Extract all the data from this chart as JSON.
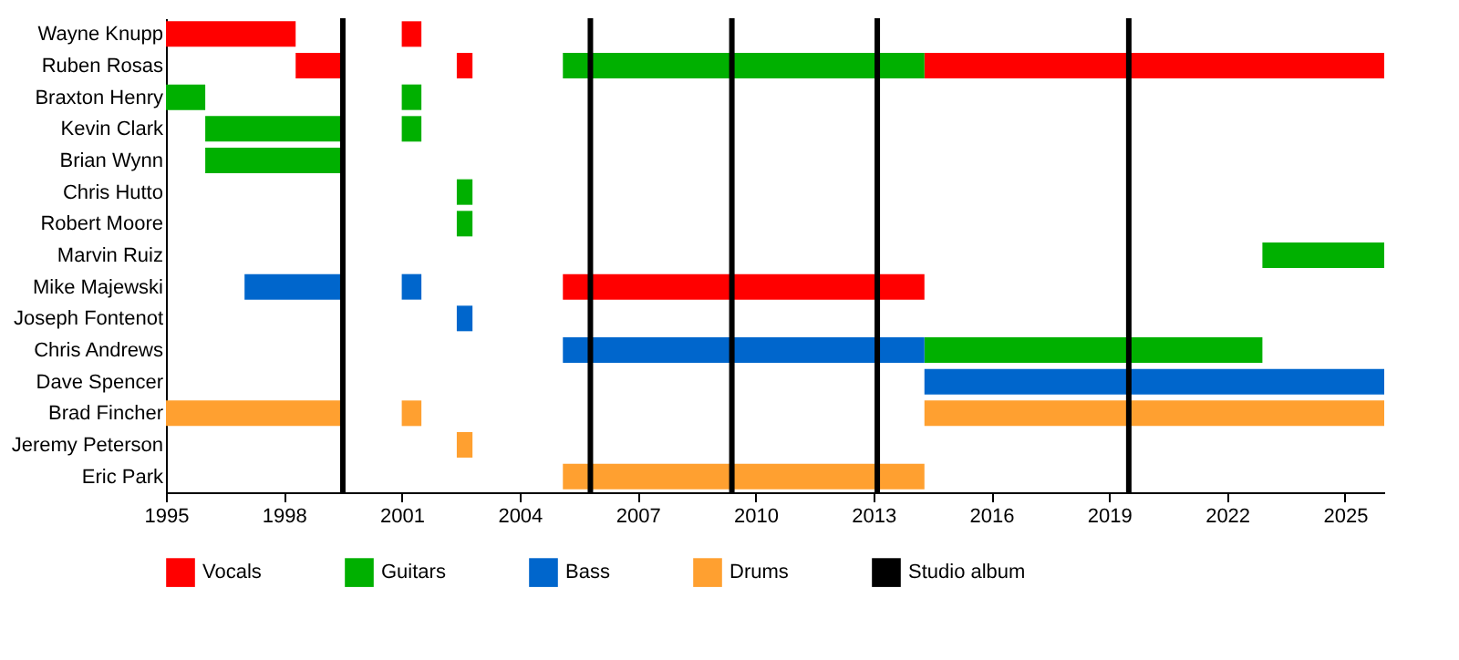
{
  "chart_data": {
    "type": "bar",
    "orientation": "horizontal",
    "categories": [
      "Wayne Knupp",
      "Ruben Rosas",
      "Braxton Henry",
      "Kevin Clark",
      "Brian Wynn",
      "Chris Hutto",
      "Robert Moore",
      "Marvin Ruiz",
      "Mike Majewski",
      "Joseph Fontenot",
      "Chris Andrews",
      "Dave Spencer",
      "Brad Fincher",
      "Jeremy Peterson",
      "Eric Park"
    ],
    "series": [
      {
        "name": "Vocals",
        "color": "#ff0000",
        "base": [
          1995,
          1998.3,
          null,
          null,
          null,
          null,
          null,
          null,
          2005.1,
          null,
          null,
          null,
          null,
          null,
          null
        ],
        "values": [
          3.3,
          1.2,
          null,
          null,
          null,
          null,
          null,
          null,
          9.2,
          null,
          null,
          null,
          null,
          null,
          null
        ]
      },
      {
        "color": "#ff0000",
        "base": [
          2001.0,
          2002.4,
          null,
          null,
          null,
          null,
          null,
          null,
          null,
          null,
          null,
          null,
          null,
          null,
          null
        ],
        "values": [
          0.5,
          0.4,
          null,
          null,
          null,
          null,
          null,
          null,
          null,
          null,
          null,
          null,
          null,
          null,
          null
        ]
      },
      {
        "color": "#ff0000",
        "base": [
          null,
          2014.3,
          null,
          null,
          null,
          null,
          null,
          null,
          null,
          null,
          null,
          null,
          null,
          null,
          null
        ],
        "values": [
          null,
          11.7,
          null,
          null,
          null,
          null,
          null,
          null,
          null,
          null,
          null,
          null,
          null,
          null,
          null
        ]
      },
      {
        "name": "Guitars",
        "color": "#00b000",
        "base": [
          null,
          2005.1,
          1995,
          1996,
          1996,
          2002.4,
          2002.4,
          2022.9,
          null,
          null,
          2014.3,
          null,
          null,
          null,
          null
        ],
        "values": [
          null,
          9.2,
          1.0,
          3.5,
          3.5,
          0.4,
          0.4,
          3.1,
          null,
          null,
          8.6,
          null,
          null,
          null,
          null
        ]
      },
      {
        "color": "#00b000",
        "base": [
          null,
          null,
          2001.0,
          2001.0,
          null,
          null,
          null,
          null,
          null,
          null,
          null,
          null,
          null,
          null,
          null
        ],
        "values": [
          null,
          null,
          0.5,
          0.5,
          null,
          null,
          null,
          null,
          null,
          null,
          null,
          null,
          null,
          null,
          null
        ]
      },
      {
        "name": "Bass",
        "color": "#0066cc",
        "base": [
          null,
          null,
          null,
          null,
          null,
          null,
          null,
          null,
          1997,
          2002.4,
          2005.1,
          2014.3,
          null,
          null,
          null
        ],
        "values": [
          null,
          null,
          null,
          null,
          null,
          null,
          null,
          null,
          2.5,
          0.4,
          9.2,
          11.7,
          null,
          null,
          null
        ]
      },
      {
        "color": "#0066cc",
        "base": [
          null,
          null,
          null,
          null,
          null,
          null,
          null,
          null,
          2001.0,
          null,
          null,
          null,
          null,
          null,
          null
        ],
        "values": [
          null,
          null,
          null,
          null,
          null,
          null,
          null,
          null,
          0.5,
          null,
          null,
          null,
          null,
          null,
          null
        ]
      },
      {
        "name": "Drums",
        "color": "#ffa030",
        "base": [
          null,
          null,
          null,
          null,
          null,
          null,
          null,
          null,
          null,
          null,
          null,
          null,
          1995,
          2002.4,
          2005.1
        ],
        "values": [
          null,
          null,
          null,
          null,
          null,
          null,
          null,
          null,
          null,
          null,
          null,
          null,
          4.5,
          0.4,
          9.2
        ]
      },
      {
        "color": "#ffa030",
        "base": [
          null,
          null,
          null,
          null,
          null,
          null,
          null,
          null,
          null,
          null,
          null,
          null,
          2001.0,
          null,
          null
        ],
        "values": [
          null,
          null,
          null,
          null,
          null,
          null,
          null,
          null,
          null,
          null,
          null,
          null,
          0.5,
          null,
          null
        ]
      },
      {
        "color": "#ffa030",
        "base": [
          null,
          null,
          null,
          null,
          null,
          null,
          null,
          null,
          null,
          null,
          null,
          null,
          2014.3,
          null,
          null
        ],
        "values": [
          null,
          null,
          null,
          null,
          null,
          null,
          null,
          null,
          null,
          null,
          null,
          null,
          11.7,
          null,
          null
        ]
      }
    ],
    "ref_lines": [
      {
        "axis": "x",
        "value": 1999.5,
        "label": "Studio album",
        "color": "#000000"
      },
      {
        "axis": "x",
        "value": 2005.8
      },
      {
        "axis": "x",
        "value": 2009.4
      },
      {
        "axis": "x",
        "value": 2013.1
      },
      {
        "axis": "x",
        "value": 2019.5
      }
    ],
    "xlim": [
      1995,
      2026
    ],
    "xticks": [
      1995,
      1998,
      2001,
      2004,
      2007,
      2010,
      2013,
      2016,
      2019,
      2022,
      2025
    ],
    "grid": false,
    "legend": "bottom"
  }
}
